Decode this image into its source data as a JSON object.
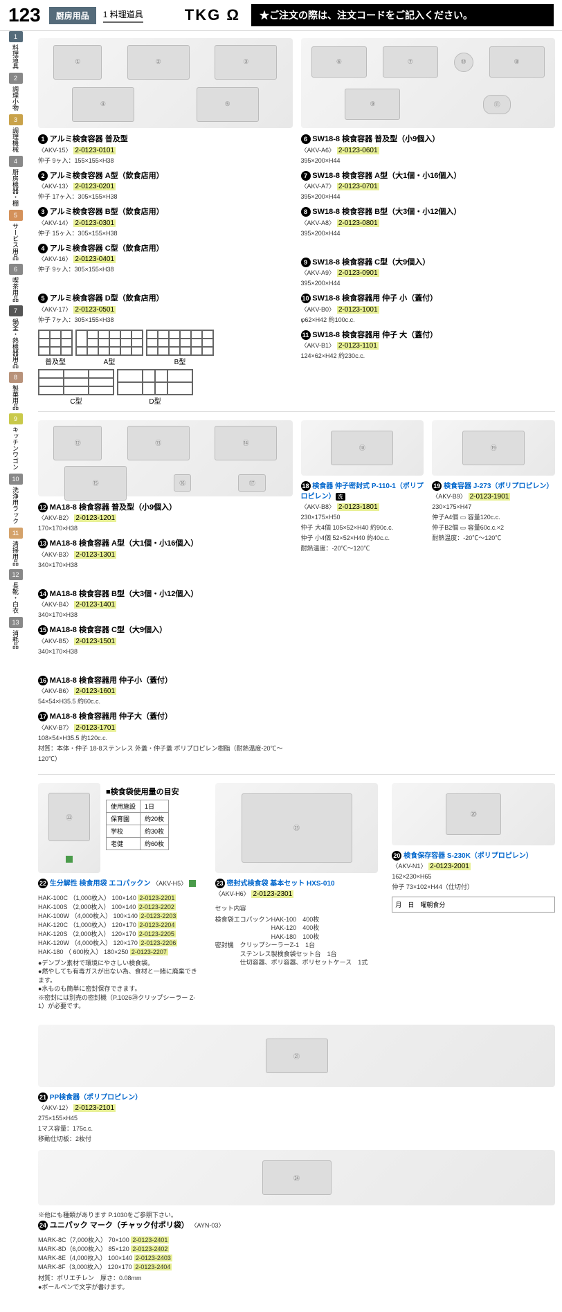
{
  "header": {
    "page_num": "123",
    "category": "厨房用品",
    "sub_cat_num": "1",
    "sub_cat": "料理道具",
    "logo": "TKG Ω",
    "notice": "ご注文の際は、注文コードをご記入ください。"
  },
  "sidebar": [
    {
      "n": "1",
      "label": "料理道具",
      "c": "#556b7a"
    },
    {
      "n": "2",
      "label": "調理小物",
      "c": "#888"
    },
    {
      "n": "3",
      "label": "調理機械",
      "c": "#c9a24a"
    },
    {
      "n": "4",
      "label": "厨房機器・棚",
      "c": "#888"
    },
    {
      "n": "5",
      "label": "サービス用品",
      "c": "#d4915a"
    },
    {
      "n": "6",
      "label": "喫茶用品",
      "c": "#888"
    },
    {
      "n": "7",
      "label": "鍋釜・熱機器用品",
      "c": "#555"
    },
    {
      "n": "8",
      "label": "製菓用品",
      "c": "#b8927a"
    },
    {
      "n": "9",
      "label": "キッチンワゴン",
      "c": "#c9c94a"
    },
    {
      "n": "10",
      "label": "洗浄用ラック",
      "c": "#888"
    },
    {
      "n": "11",
      "label": "清掃用品",
      "c": "#d4a26a"
    },
    {
      "n": "12",
      "label": "長靴・白衣",
      "c": "#888"
    },
    {
      "n": "13",
      "label": "消耗品",
      "c": "#888"
    }
  ],
  "sec1": {
    "p1": {
      "n": "1",
      "name": "アルミ検食容器 普及型",
      "code": "〈AKV-15〉",
      "hc": "2-0123-0101",
      "spec": "仲子 9ヶ入：155×155×H38"
    },
    "p2": {
      "n": "2",
      "name": "アルミ検食容器 A型（飲食店用）",
      "code": "〈AKV-13〉",
      "hc": "2-0123-0201",
      "spec": "仲子 17ヶ入：305×155×H38"
    },
    "p3": {
      "n": "3",
      "name": "アルミ検食容器 B型（飲食店用）",
      "code": "〈AKV-14〉",
      "hc": "2-0123-0301",
      "spec": "仲子 15ヶ入：305×155×H38"
    },
    "p4": {
      "n": "4",
      "name": "アルミ検食容器 C型（飲食店用）",
      "code": "〈AKV-16〉",
      "hc": "2-0123-0401",
      "spec": "仲子 9ヶ入：305×155×H38"
    },
    "p5": {
      "n": "5",
      "name": "アルミ検食容器 D型（飲食店用）",
      "code": "〈AKV-17〉",
      "hc": "2-0123-0501",
      "spec": "仲子 7ヶ入：305×155×H38"
    },
    "p6": {
      "n": "6",
      "name": "SW18-8 検食容器 普及型（小9個入）",
      "code": "〈AKV-A6〉",
      "hc": "2-0123-0601",
      "spec": "395×200×H44"
    },
    "p7": {
      "n": "7",
      "name": "SW18-8 検食容器 A型（大1個・小16個入）",
      "code": "〈AKV-A7〉",
      "hc": "2-0123-0701",
      "spec": "395×200×H44"
    },
    "p8": {
      "n": "8",
      "name": "SW18-8 検食容器 B型（大3個・小12個入）",
      "code": "〈AKV-A8〉",
      "hc": "2-0123-0801",
      "spec": "395×200×H44"
    },
    "p9": {
      "n": "9",
      "name": "SW18-8 検食容器 C型（大9個入）",
      "code": "〈AKV-A9〉",
      "hc": "2-0123-0901",
      "spec": "395×200×H44"
    },
    "p10": {
      "n": "10",
      "name": "SW18-8 検食容器用 仲子 小（蓋付）",
      "code": "〈AKV-B0〉",
      "hc": "2-0123-1001",
      "spec": "φ62×H42 約100c.c."
    },
    "p11": {
      "n": "11",
      "name": "SW18-8 検食容器用 仲子 大（蓋付）",
      "code": "〈AKV-B1〉",
      "hc": "2-0123-1101",
      "spec": "124×62×H42 約230c.c."
    },
    "diag_labels": {
      "a": "普及型",
      "b": "A型",
      "c": "B型",
      "d": "C型",
      "e": "D型"
    }
  },
  "sec2": {
    "p12": {
      "n": "12",
      "name": "MA18-8 検食容器 普及型（小9個入）",
      "code": "〈AKV-B2〉",
      "hc": "2-0123-1201",
      "spec": "170×170×H38"
    },
    "p13": {
      "n": "13",
      "name": "MA18-8 検食容器 A型（大1個・小16個入）",
      "code": "〈AKV-B3〉",
      "hc": "2-0123-1301",
      "spec": "340×170×H38"
    },
    "p14": {
      "n": "14",
      "name": "MA18-8 検食容器 B型（大3個・小12個入）",
      "code": "〈AKV-B4〉",
      "hc": "2-0123-1401",
      "spec": "340×170×H38"
    },
    "p15": {
      "n": "15",
      "name": "MA18-8 検食容器 C型（大9個入）",
      "code": "〈AKV-B5〉",
      "hc": "2-0123-1501",
      "spec": "340×170×H38"
    },
    "p16": {
      "n": "16",
      "name": "MA18-8 検食容器用 仲子小（蓋付）",
      "code": "〈AKV-B6〉",
      "hc": "2-0123-1601",
      "spec": "54×54×H35.5 約60c.c."
    },
    "p17": {
      "n": "17",
      "name": "MA18-8 検食容器用 仲子大（蓋付）",
      "code": "〈AKV-B7〉",
      "hc": "2-0123-1701",
      "spec": "108×54×H35.5 約120c.c.",
      "mat": "材質：本体・仲子 18-8ステンレス  外蓋・仲子蓋 ポリプロピレン樹脂（耐熱温度-20℃〜120℃）"
    },
    "p18": {
      "n": "18",
      "name": "検食器 仲子密封式 P-110-1（ポリプロピレン）",
      "badge": "洗",
      "code": "〈AKV-B8〉",
      "hc": "2-0123-1801",
      "spec": "230×175×H50",
      "spec2": "仲子 大4個 105×52×H40 約90c.c.",
      "spec3": "仲子 小4個 52×52×H40 約40c.c.",
      "spec4": "耐熱温度：-20℃〜120℃"
    },
    "p19": {
      "n": "19",
      "name": "検食容器 J-273（ポリプロピレン）",
      "code": "〈AKV-B9〉",
      "hc": "2-0123-1901",
      "spec": "230×175×H47",
      "spec2": "仲子A4個 ▭ 容量120c.c.",
      "spec3": "仲子B2個 ▭ 容量60c.c.×2",
      "spec4": "耐熱温度：-20℃〜120℃"
    }
  },
  "sec3": {
    "p20": {
      "n": "20",
      "name": "検食保存容器 S-230K（ポリプロピレン）",
      "code": "〈AKV-N1〉",
      "hc": "2-0123-2001",
      "spec": "162×230×H65",
      "spec2": "仲子 73×102×H44（仕切付）"
    },
    "p21": {
      "n": "21",
      "name": "PP検食器（ポリプロピレン）",
      "code": "〈AKV-12〉",
      "hc": "2-0123-2101",
      "spec": "275×155×H45",
      "spec2": "1マス容量：175c.c.",
      "spec3": "移動仕切板：2枚付"
    },
    "usage_title": "■検食袋使用量の目安",
    "usage_table": [
      [
        "使用施設",
        "1日"
      ],
      [
        "保育園",
        "約20枚"
      ],
      [
        "学校",
        "約30枚"
      ],
      [
        "老健",
        "約60枚"
      ]
    ],
    "p22": {
      "n": "22",
      "name": "生分解性 検食用袋 エコパックン",
      "code": "〈AKV-H5〉"
    },
    "p22_rows": [
      [
        "HAK-100C",
        "（1,000枚入）",
        "100×140",
        "2-0123-2201"
      ],
      [
        "HAK-100S",
        "（2,000枚入）",
        "100×140",
        "2-0123-2202"
      ],
      [
        "HAK-100W",
        "（4,000枚入）",
        "100×140",
        "2-0123-2203"
      ],
      [
        "HAK-120C",
        "（1,000枚入）",
        "120×170",
        "2-0123-2204"
      ],
      [
        "HAK-120S",
        "（2,000枚入）",
        "120×170",
        "2-0123-2205"
      ],
      [
        "HAK-120W",
        "（4,000枚入）",
        "120×170",
        "2-0123-2206"
      ],
      [
        "HAK-180",
        "（ 600枚入）",
        "180×250",
        "2-0123-2207"
      ]
    ],
    "p22_notes": [
      "●デンプン素材で環境にやさしい検食袋。",
      "●燃やしても有毒ガスが出ない為、食材と一緒に廃棄できます。",
      "●水ものも簡単に密封保存できます。",
      "※密封には別売の密封機（P.1026㉙クリップシーラー Z-1）が必要です。"
    ],
    "p23": {
      "n": "23",
      "name": "密封式検食袋 基本セット HXS-010",
      "code": "〈AKV-H6〉",
      "hc": "2-0123-2301"
    },
    "p23_set_title": "セット内容",
    "p23_set": [
      "検食袋エコパックンHAK-100　400枚",
      "　　　　　　　　　HAK-120　400枚",
      "　　　　　　　　　HAK-180　100枚",
      "密封機　クリップシーラーZ-1　1台",
      "　　　　ステンレス製検食袋セット台　1台",
      "　　　　仕切容器、ポリ容器、ポリセットケース　1式"
    ],
    "p24": {
      "n": "24",
      "name": "ユニパック マーク（チャック付ポリ袋）",
      "code": "〈AYN-03〉",
      "note": "※他にも種類があります P.1030をご参照下さい。"
    },
    "p24_rows": [
      [
        "MARK-8C（7,000枚入）",
        "70×100",
        "2-0123-2401"
      ],
      [
        "MARK-8D（6,000枚入）",
        "85×120",
        "2-0123-2402"
      ],
      [
        "MARK-8E（4,000枚入）",
        "100×140",
        "2-0123-2403"
      ],
      [
        "MARK-8F（3,000枚入）",
        "120×170",
        "2-0123-2404"
      ]
    ],
    "p24_notes": [
      "材質：ポリエチレン　厚さ：0.08mm",
      "●ボールペンで文字が書けます。"
    ]
  }
}
